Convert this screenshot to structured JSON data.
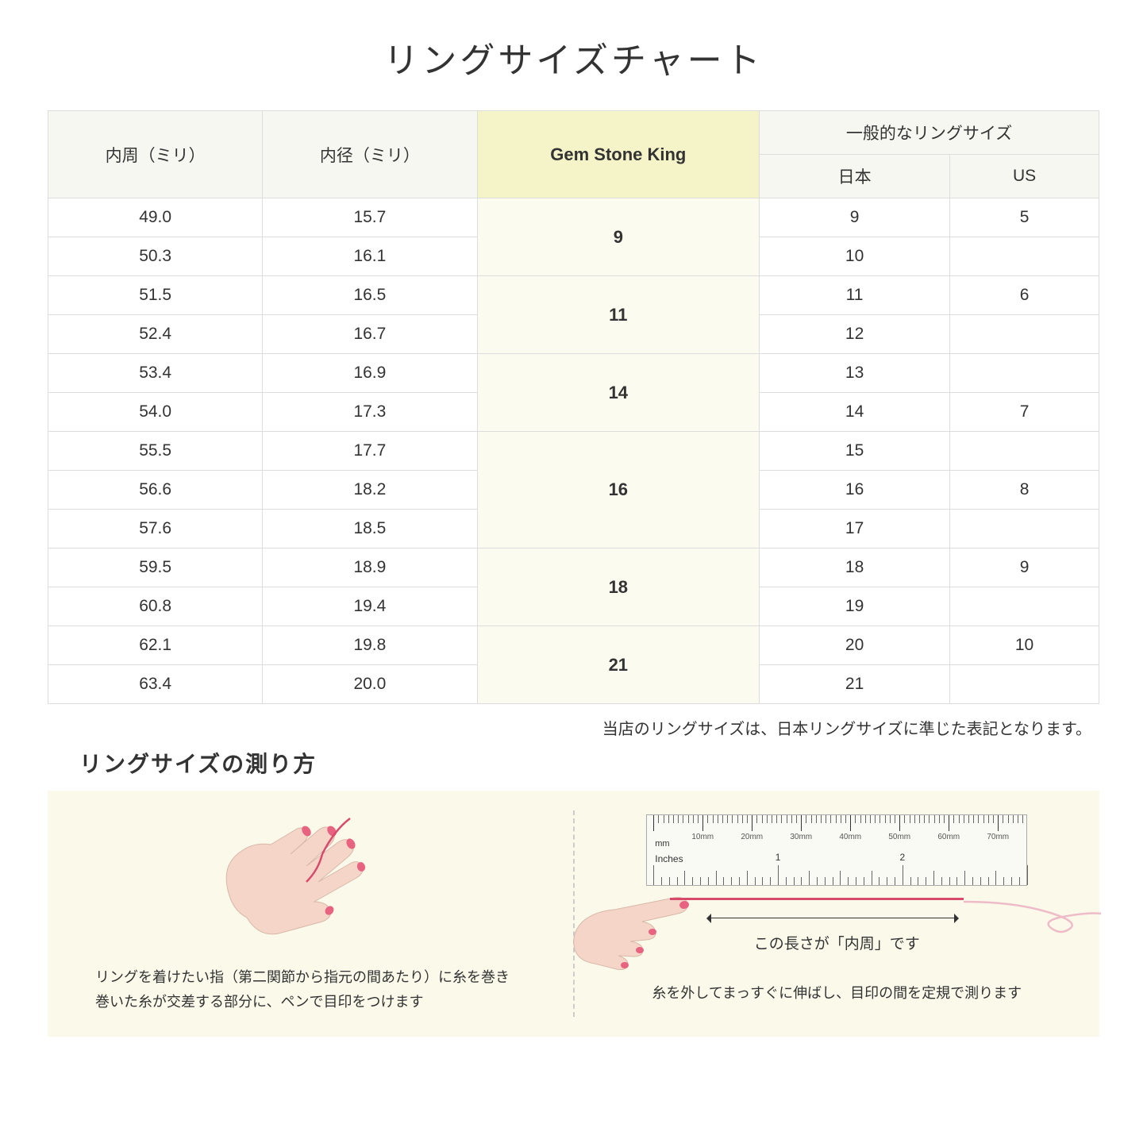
{
  "title": "リングサイズチャート",
  "headers": {
    "circumference": "内周（ミリ）",
    "diameter": "内径（ミリ）",
    "gsk": "Gem Stone King",
    "general": "一般的なリングサイズ",
    "japan": "日本",
    "us": "US"
  },
  "rows": [
    {
      "c": "49.0",
      "d": "15.7",
      "jp": "9",
      "us": "5"
    },
    {
      "c": "50.3",
      "d": "16.1",
      "jp": "10",
      "us": ""
    },
    {
      "c": "51.5",
      "d": "16.5",
      "jp": "11",
      "us": "6"
    },
    {
      "c": "52.4",
      "d": "16.7",
      "jp": "12",
      "us": ""
    },
    {
      "c": "53.4",
      "d": "16.9",
      "jp": "13",
      "us": ""
    },
    {
      "c": "54.0",
      "d": "17.3",
      "jp": "14",
      "us": "7"
    },
    {
      "c": "55.5",
      "d": "17.7",
      "jp": "15",
      "us": ""
    },
    {
      "c": "56.6",
      "d": "18.2",
      "jp": "16",
      "us": "8"
    },
    {
      "c": "57.6",
      "d": "18.5",
      "jp": "17",
      "us": ""
    },
    {
      "c": "59.5",
      "d": "18.9",
      "jp": "18",
      "us": "9"
    },
    {
      "c": "60.8",
      "d": "19.4",
      "jp": "19",
      "us": ""
    },
    {
      "c": "62.1",
      "d": "19.8",
      "jp": "20",
      "us": "10"
    },
    {
      "c": "63.4",
      "d": "20.0",
      "jp": "21",
      "us": ""
    }
  ],
  "gsk_groups": [
    {
      "size": "9",
      "span": 2
    },
    {
      "size": "11",
      "span": 2
    },
    {
      "size": "14",
      "span": 2
    },
    {
      "size": "16",
      "span": 3
    },
    {
      "size": "18",
      "span": 2
    },
    {
      "size": "21",
      "span": 2
    }
  ],
  "footnote": "当店のリングサイズは、日本リングサイズに準じた表記となります。",
  "measure_title": "リングサイズの測り方",
  "panel1_caption": "リングを着けたい指（第二関節から指元の間あたり）に糸を巻き\n巻いた糸が交差する部分に、ペンで目印をつけます",
  "panel2_arrow_label": "この長さが「内周」です",
  "panel2_caption": "糸を外してまっすぐに伸ばし、目印の間を定規で測ります",
  "ruler": {
    "mm_label": "mm",
    "inches_label": "Inches",
    "mm_ticks": [
      "10mm",
      "20mm",
      "30mm",
      "40mm",
      "50mm",
      "60mm",
      "70mm"
    ],
    "inch_ticks": [
      "1",
      "2"
    ]
  },
  "colors": {
    "header_bg": "#f7f7f2",
    "gsk_bg": "#f5f3c8",
    "gsk_cell_bg": "#fcfbf0",
    "panel_bg": "#fbf9ea",
    "skin": "#f4d5c8",
    "nail": "#e8637f",
    "thread": "#d94a6a"
  }
}
